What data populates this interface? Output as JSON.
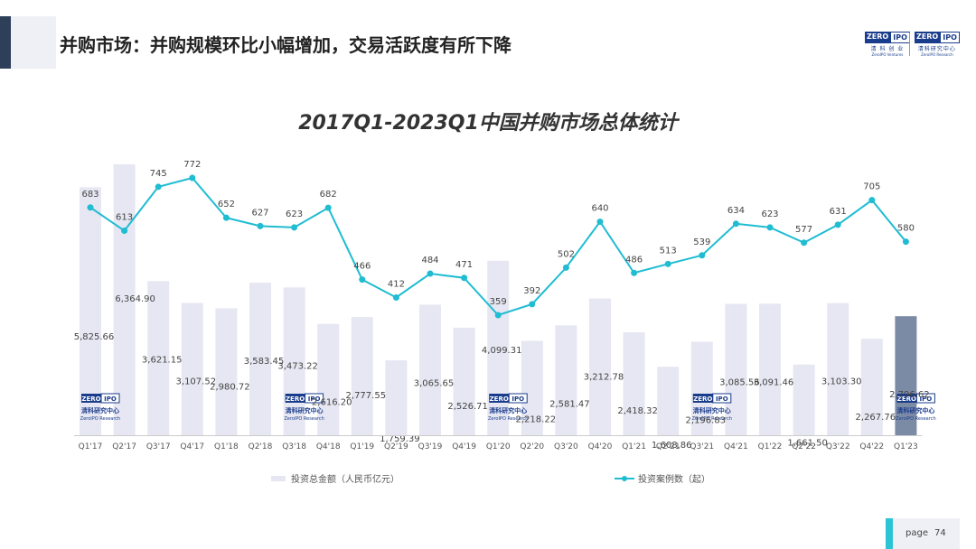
{
  "header": {
    "title": "并购市场：并购规模环比小幅增加，交易活跃度有所下降"
  },
  "logos": {
    "zero": "ZERO",
    "ipo": "IPO",
    "qingke_cn": "清 科 创 业",
    "qingke_en": "ZeroIPO Ventures",
    "research_cn": "清科研究中心",
    "research_en": "ZeroIPO Research"
  },
  "footer": {
    "page_label": "page",
    "page_number": "74"
  },
  "colors": {
    "bar": "#e6e7f2",
    "bar_last": "#7c8ba5",
    "line": "#1fbcd2",
    "title": "#333333"
  },
  "chart_data": {
    "type": "bar+line",
    "title": "2017Q1-2023Q1中国并购市场总体统计",
    "categories": [
      "Q1'17",
      "Q2'17",
      "Q3'17",
      "Q4'17",
      "Q1'18",
      "Q2'18",
      "Q3'18",
      "Q4'18",
      "Q1'19",
      "Q2'19",
      "Q3'19",
      "Q4'19",
      "Q1'20",
      "Q2'20",
      "Q3'20",
      "Q4'20",
      "Q1'21",
      "Q2'21",
      "Q3'21",
      "Q4'21",
      "Q1'22",
      "Q2'22",
      "Q3'22",
      "Q4'22",
      "Q1'23"
    ],
    "series": [
      {
        "name": "投资总金额（人民币亿元）",
        "type": "bar",
        "values": [
          5825.66,
          6364.9,
          3621.15,
          3107.52,
          2980.72,
          3583.45,
          3473.22,
          2616.2,
          2777.55,
          1759.39,
          3065.65,
          2526.71,
          4099.31,
          2218.22,
          2581.47,
          3212.78,
          2418.32,
          1608.86,
          2196.83,
          3085.56,
          3091.46,
          1661.5,
          3103.3,
          2267.76,
          2796.62
        ],
        "labels": [
          "5,825.66",
          "6,364.90",
          "3,621.15",
          "3,107.52",
          "2,980.72",
          "3,583.45",
          "3,473.22",
          "2,616.20",
          "2,777.55",
          "1,759.39",
          "3,065.65",
          "2,526.71",
          "4,099.31",
          "2,218.22",
          "2,581.47",
          "3,212.78",
          "2,418.32",
          "1,608.86",
          "2,196.83",
          "3,085.56",
          "3,091.46",
          "1,661.50",
          "3,103.30",
          "2,267.76",
          "2,796.62"
        ]
      },
      {
        "name": "投资案例数（起）",
        "type": "line",
        "values": [
          683,
          613,
          745,
          772,
          652,
          627,
          623,
          682,
          466,
          412,
          484,
          471,
          359,
          392,
          502,
          640,
          486,
          513,
          539,
          634,
          623,
          577,
          631,
          705,
          580
        ]
      }
    ],
    "legend": "bottom"
  }
}
